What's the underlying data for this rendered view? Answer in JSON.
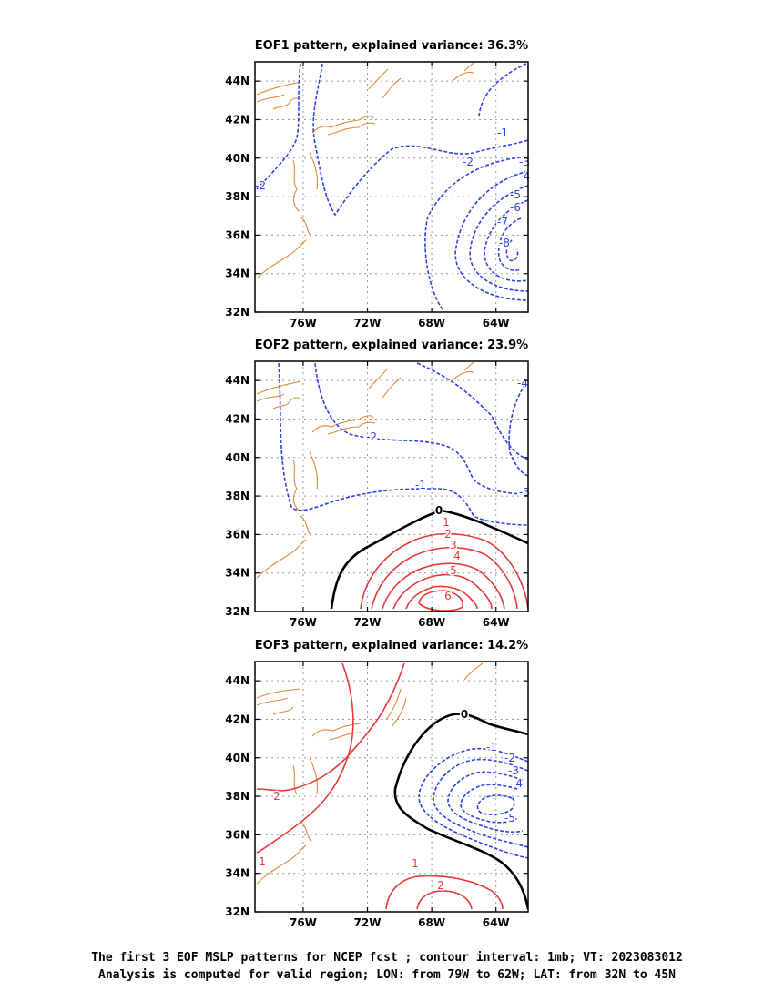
{
  "colors": {
    "negative": "#2b44e0",
    "positive": "#e63a3a",
    "zero": "#000000",
    "coast": "#e08a3a",
    "grid": "#999999"
  },
  "caption": {
    "line1": "The first 3 EOF MSLP patterns for NCEP fcst ; contour interval: 1mb; VT: 2023083012",
    "line2": "Analysis is computed for valid region; LON: from 79W to 62W; LAT: from 32N to 45N"
  },
  "chart_data": [
    {
      "type": "contour",
      "title": "EOF1 pattern, explained variance: 36.3%",
      "xlim": [
        -79,
        -62
      ],
      "ylim": [
        32,
        45
      ],
      "x_ticks": [
        "76W",
        "72W",
        "68W",
        "64W"
      ],
      "y_ticks": [
        "32N",
        "34N",
        "36N",
        "38N",
        "40N",
        "42N",
        "44N"
      ],
      "grid": true,
      "contour_interval": 1,
      "contour_labels": [
        "-1",
        "-2",
        "-2",
        "-3",
        "-4",
        "-5",
        "-6",
        "-7",
        "-8"
      ],
      "minimum": {
        "value": -8,
        "lon": -63.2,
        "lat": 35.6
      }
    },
    {
      "type": "contour",
      "title": "EOF2 pattern, explained variance: 23.9%",
      "xlim": [
        -79,
        -62
      ],
      "ylim": [
        32,
        45
      ],
      "x_ticks": [
        "76W",
        "72W",
        "68W",
        "64W"
      ],
      "y_ticks": [
        "32N",
        "34N",
        "36N",
        "38N",
        "40N",
        "42N",
        "44N"
      ],
      "grid": true,
      "contour_interval": 1,
      "contour_labels": [
        "-2",
        "-1",
        "-3",
        "-4",
        "0",
        "1",
        "2",
        "3",
        "4",
        "5",
        "6"
      ],
      "maximum": {
        "value": 6,
        "lon": -67.5,
        "lat": 33.4
      }
    },
    {
      "type": "contour",
      "title": "EOF3 pattern, explained variance: 14.2%",
      "xlim": [
        -79,
        -62
      ],
      "ylim": [
        32,
        45
      ],
      "x_ticks": [
        "76W",
        "72W",
        "68W",
        "64W"
      ],
      "y_ticks": [
        "32N",
        "34N",
        "36N",
        "38N",
        "40N",
        "42N",
        "44N"
      ],
      "grid": true,
      "contour_interval": 1,
      "contour_labels": [
        "0",
        "-1",
        "-2",
        "-3",
        "-4",
        "-5",
        "2",
        "1",
        "1",
        "2"
      ],
      "minimum": {
        "value": -5,
        "lon": -63.5,
        "lat": 37.3
      }
    }
  ]
}
